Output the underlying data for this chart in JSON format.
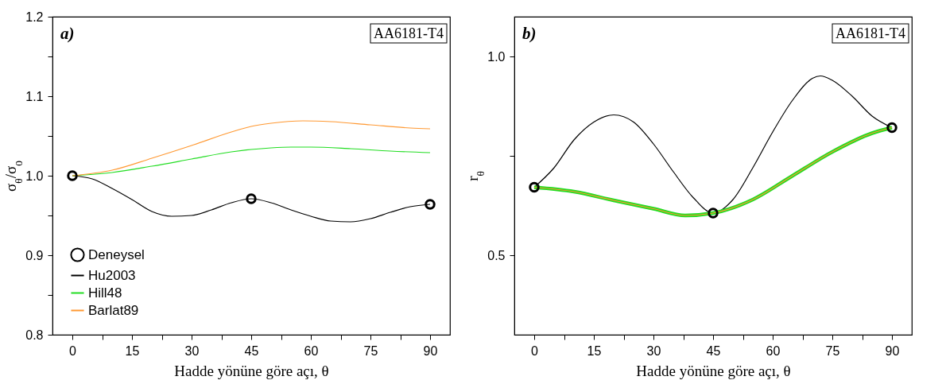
{
  "chart_data": [
    {
      "type": "line",
      "annotations": [
        "a)",
        "AA6181-T4"
      ],
      "xlabel": "Hadde yönüne göre açı, θ",
      "ylabel": "σ$_{θ}$/σ$_{0}$",
      "xlim": [
        -5,
        95
      ],
      "ylim": [
        0.8,
        1.2
      ],
      "xticks": [
        0,
        {
          "value": 7.5,
          "label": null
        },
        15,
        {
          "value": 22.5,
          "label": null
        },
        30,
        {
          "value": 37.5,
          "label": null
        },
        45,
        {
          "value": 52.5,
          "label": null
        },
        60,
        {
          "value": 67.5,
          "label": null
        },
        75,
        {
          "value": 82.5,
          "label": null
        },
        90
      ],
      "yticks": [
        0.8,
        {
          "value": 0.85,
          "label": null
        },
        0.9,
        {
          "value": 0.95,
          "label": null
        },
        {
          "value": 1,
          "label": "1.0"
        },
        {
          "value": 1.05,
          "label": null
        },
        1.1,
        {
          "value": 1.15,
          "label": null
        },
        1.2
      ],
      "grid": false,
      "legend": "bottom left",
      "series": [
        {
          "name": "Deneysel",
          "type": "scatter",
          "marker": "circle",
          "color": "#000000",
          "x": [
            0,
            45,
            90
          ],
          "values": [
            1.0,
            0.971,
            0.964
          ]
        },
        {
          "name": "Hu2003",
          "type": "line",
          "color": "#000000",
          "x": [
            0,
            5,
            10,
            15,
            20,
            25,
            30,
            35,
            40,
            45,
            50,
            55,
            60,
            65,
            70,
            75,
            80,
            85,
            90
          ],
          "values": [
            1.0,
            0.996,
            0.984,
            0.97,
            0.955,
            0.949,
            0.95,
            0.957,
            0.966,
            0.971,
            0.966,
            0.957,
            0.949,
            0.943,
            0.942,
            0.946,
            0.954,
            0.961,
            0.964
          ]
        },
        {
          "name": "Hill48",
          "type": "line",
          "color": "#22dd22",
          "x": [
            0,
            10,
            20,
            30,
            40,
            50,
            55,
            60,
            70,
            80,
            90
          ],
          "values": [
            1.0,
            1.004,
            1.012,
            1.021,
            1.03,
            1.035,
            1.036,
            1.036,
            1.034,
            1.031,
            1.029
          ]
        },
        {
          "name": "Barlat89",
          "type": "line",
          "color": "#ff9933",
          "x": [
            0,
            10,
            20,
            30,
            40,
            45,
            50,
            58,
            65,
            75,
            85,
            90
          ],
          "values": [
            1.0,
            1.007,
            1.022,
            1.038,
            1.055,
            1.062,
            1.066,
            1.069,
            1.068,
            1.064,
            1.06,
            1.059
          ]
        }
      ]
    },
    {
      "type": "line",
      "annotations": [
        "b)",
        "AA6181-T4"
      ],
      "xlabel": "Hadde yönüne göre açı, θ",
      "ylabel": "r$_{θ}$",
      "xlim": [
        -5,
        95
      ],
      "ylim": [
        0.3,
        1.1
      ],
      "xticks": [
        0,
        {
          "value": 7.5,
          "label": null
        },
        15,
        {
          "value": 22.5,
          "label": null
        },
        30,
        {
          "value": 37.5,
          "label": null
        },
        45,
        {
          "value": 52.5,
          "label": null
        },
        60,
        {
          "value": 67.5,
          "label": null
        },
        75,
        {
          "value": 82.5,
          "label": null
        },
        90
      ],
      "yticks": [
        0.5,
        {
          "value": 0.75,
          "label": null
        },
        {
          "value": 1,
          "label": "1.0"
        }
      ],
      "grid": false,
      "legend": "bottom left",
      "series": [
        {
          "name": "Deneysel",
          "type": "scatter",
          "marker": "circle",
          "color": "#000000",
          "x": [
            0,
            45,
            90
          ],
          "values": [
            0.671,
            0.606,
            0.821
          ]
        },
        {
          "name": "Hu2003",
          "type": "line",
          "color": "#000000",
          "x": [
            0,
            5,
            10,
            15,
            20,
            25,
            30,
            35,
            40,
            45,
            50,
            55,
            60,
            65,
            70,
            72,
            75,
            80,
            85,
            90
          ],
          "values": [
            0.671,
            0.72,
            0.79,
            0.835,
            0.853,
            0.835,
            0.78,
            0.71,
            0.645,
            0.606,
            0.64,
            0.72,
            0.81,
            0.89,
            0.945,
            0.951,
            0.94,
            0.9,
            0.85,
            0.821
          ]
        },
        {
          "name": "Hill48",
          "type": "line",
          "color": "#22dd22",
          "x": [
            0,
            10,
            20,
            30,
            38,
            45,
            55,
            65,
            75,
            85,
            90
          ],
          "values": [
            0.671,
            0.66,
            0.638,
            0.617,
            0.6,
            0.606,
            0.64,
            0.7,
            0.76,
            0.807,
            0.821
          ]
        },
        {
          "name": "Barlat89",
          "type": "line",
          "color": "#ff9933",
          "x": [
            0,
            10,
            20,
            30,
            38,
            45,
            55,
            65,
            75,
            85,
            90
          ],
          "values": [
            0.671,
            0.66,
            0.638,
            0.617,
            0.6,
            0.606,
            0.64,
            0.7,
            0.76,
            0.807,
            0.821
          ]
        }
      ]
    }
  ]
}
